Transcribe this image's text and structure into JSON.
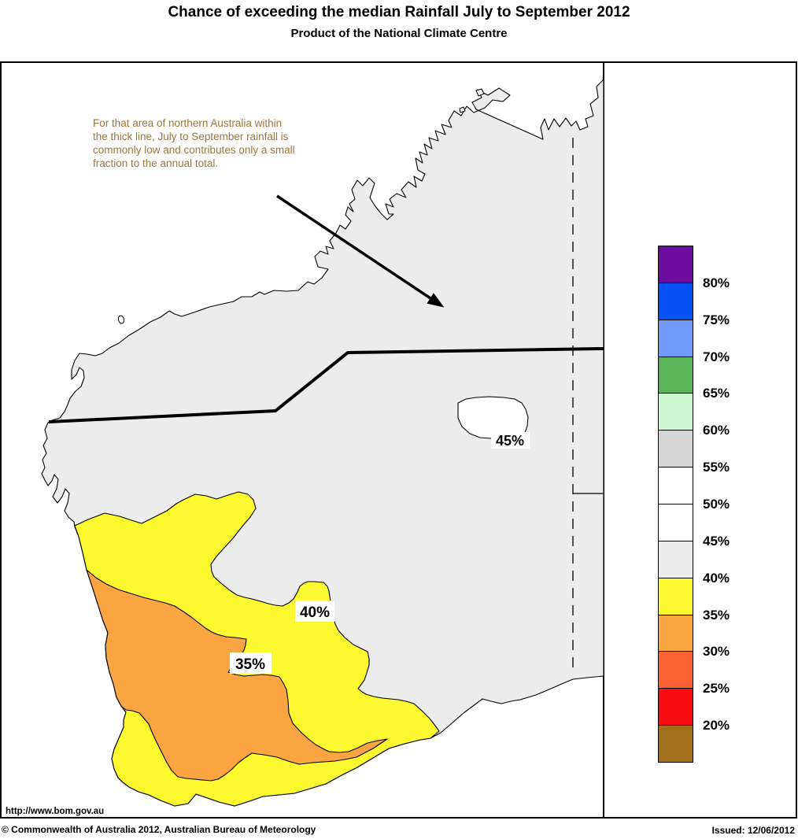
{
  "header": {
    "title": "Chance of exceeding the median Rainfall July to September 2012",
    "subtitle": "Product of the National Climate Centre"
  },
  "map": {
    "annotation_lines": [
      "For that area of northern Australia within",
      "the thick line, July to September rainfall is",
      "commonly low and contributes only a small",
      "fraction to the annual total."
    ],
    "annotation_color": "#9A763B",
    "labels": {
      "contour_45": "45%",
      "contour_40": "40%",
      "contour_35": "35%"
    },
    "colors": {
      "ocean": "#FFFFFF",
      "land": "#ECECEC",
      "zone_40": "#FDF931",
      "zone_35": "#FBA442",
      "contour_45_fill": "#FFFFFF",
      "border_line": "#000000"
    }
  },
  "legend": {
    "entries": [
      {
        "color": "#6D0C9E",
        "label": "80%"
      },
      {
        "color": "#0752F2",
        "label": "75%"
      },
      {
        "color": "#6F9AFB",
        "label": "70%"
      },
      {
        "color": "#58B457",
        "label": "65%"
      },
      {
        "color": "#CEF8CF",
        "label": "60%"
      },
      {
        "color": "#D4D4D4",
        "label": "55%"
      },
      {
        "color": "#FFFFFF",
        "label": "50%"
      },
      {
        "color": "#FFFFFF",
        "label": "45%"
      },
      {
        "color": "#ECECEC",
        "label": "40%"
      },
      {
        "color": "#FDF931",
        "label": "35%"
      },
      {
        "color": "#FBA442",
        "label": "30%"
      },
      {
        "color": "#FB6133",
        "label": "25%"
      },
      {
        "color": "#F90D11",
        "label": "20%"
      },
      {
        "color": "#A16F1B",
        "label": ""
      }
    ]
  },
  "footer": {
    "url": "http://www.bom.gov.au",
    "copyright": "© Commonwealth of Australia 2012, Australian Bureau of Meteorology",
    "issued": "Issued: 12/06/2012"
  }
}
